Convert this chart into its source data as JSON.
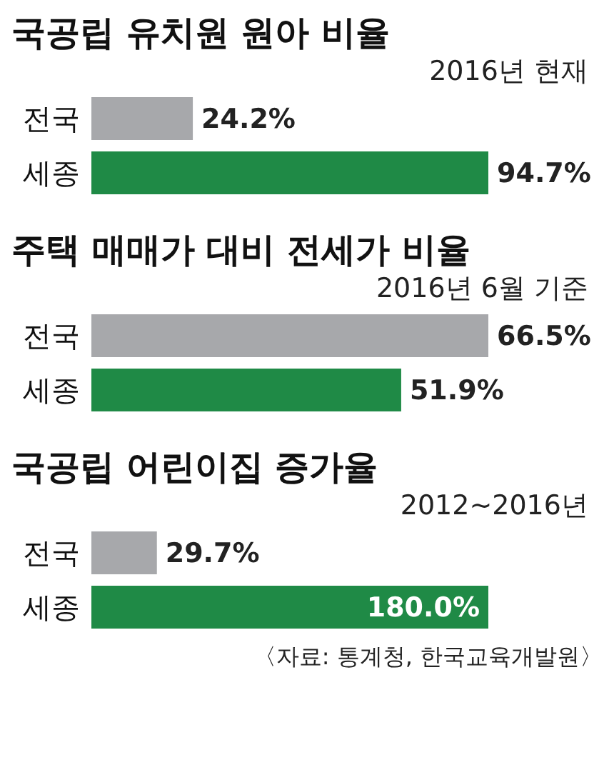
{
  "chart_data": [
    {
      "type": "bar",
      "orientation": "horizontal",
      "title": "국공립 유치원 원아 비율",
      "subtitle": "2016년 현재",
      "categories": [
        "전국",
        "세종"
      ],
      "values": [
        24.2,
        94.7
      ],
      "value_labels": [
        "24.2%",
        "94.7%"
      ],
      "colors": [
        "#a7a8ab",
        "#1f8a46"
      ]
    },
    {
      "type": "bar",
      "orientation": "horizontal",
      "title": "주택 매매가 대비 전세가 비율",
      "subtitle": "2016년 6월 기준",
      "categories": [
        "전국",
        "세종"
      ],
      "values": [
        66.5,
        51.9
      ],
      "value_labels": [
        "66.5%",
        "51.9%"
      ],
      "colors": [
        "#a7a8ab",
        "#1f8a46"
      ]
    },
    {
      "type": "bar",
      "orientation": "horizontal",
      "title": "국공립 어린이집 증가율",
      "subtitle": "2012~2016년",
      "categories": [
        "전국",
        "세종"
      ],
      "values": [
        29.7,
        180.0
      ],
      "value_labels": [
        "29.7%",
        "180.0%"
      ],
      "colors": [
        "#a7a8ab",
        "#1f8a46"
      ],
      "annotations": [
        "〈자료: 통계청, 한국교육개발원〉"
      ]
    }
  ]
}
